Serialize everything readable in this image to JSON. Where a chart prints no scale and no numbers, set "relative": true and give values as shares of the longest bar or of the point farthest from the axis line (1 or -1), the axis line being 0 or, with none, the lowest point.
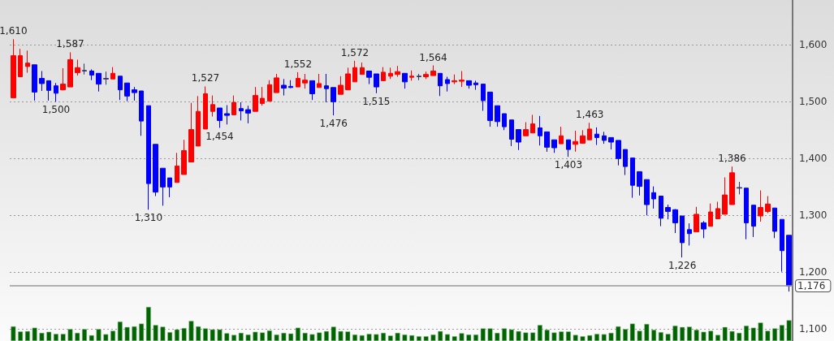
{
  "chart_data": [
    {
      "type": "candlestick",
      "categories": [
        null,
        null,
        null,
        null,
        null,
        null,
        null,
        null,
        null,
        null,
        null,
        null,
        null,
        null,
        null,
        null,
        null,
        null,
        null,
        null,
        null,
        null,
        null,
        null,
        null,
        null,
        null,
        null,
        null,
        null,
        null,
        null,
        null,
        null,
        null,
        null,
        null,
        null,
        null,
        null,
        null,
        null,
        null,
        null,
        null,
        null,
        null,
        null,
        null,
        null,
        null,
        null,
        null,
        null,
        null,
        null,
        null,
        null,
        null,
        null,
        null,
        null,
        null,
        null,
        null,
        null,
        null,
        null,
        null,
        null,
        null,
        null,
        null,
        null,
        null,
        null,
        null,
        null,
        null,
        null,
        null,
        null,
        null,
        null,
        null,
        null,
        null,
        null,
        null,
        null,
        null,
        null,
        null,
        null,
        null,
        null,
        null,
        null,
        null,
        null,
        null,
        null,
        null,
        null,
        null,
        null,
        null,
        null,
        null,
        null
      ],
      "ohlc": [
        [
          1507,
          1610,
          1507,
          1581
        ],
        [
          1544,
          1593,
          1544,
          1581
        ],
        [
          1562,
          1590,
          1551,
          1568
        ],
        [
          1565,
          1565,
          1502,
          1517
        ],
        [
          1541,
          1554,
          1519,
          1532
        ],
        [
          1537,
          1537,
          1502,
          1520
        ],
        [
          1528,
          1533,
          1500,
          1515
        ],
        [
          1521,
          1559,
          1520,
          1531
        ],
        [
          1526,
          1587,
          1526,
          1574
        ],
        [
          1551,
          1574,
          1546,
          1560
        ],
        [
          1554,
          1567,
          1548,
          1555
        ],
        [
          1554,
          1557,
          1538,
          1547
        ],
        [
          1550,
          1550,
          1518,
          1531
        ],
        [
          1540,
          1553,
          1530,
          1541
        ],
        [
          1540,
          1561,
          1540,
          1550
        ],
        [
          1545,
          1545,
          1503,
          1521
        ],
        [
          1533,
          1533,
          1501,
          1510
        ],
        [
          1521,
          1526,
          1502,
          1516
        ],
        [
          1519,
          1519,
          1440,
          1466
        ],
        [
          1493,
          1493,
          1310,
          1356
        ],
        [
          1425,
          1425,
          1334,
          1341
        ],
        [
          1383,
          1383,
          1317,
          1350
        ],
        [
          1366,
          1366,
          1332,
          1350
        ],
        [
          1358,
          1410,
          1358,
          1387
        ],
        [
          1372,
          1433,
          1372,
          1414
        ],
        [
          1394,
          1498,
          1394,
          1451
        ],
        [
          1422,
          1510,
          1422,
          1483
        ],
        [
          1452,
          1527,
          1452,
          1514
        ],
        [
          1483,
          1511,
          1474,
          1495
        ],
        [
          1489,
          1489,
          1454,
          1467
        ],
        [
          1479,
          1494,
          1460,
          1476
        ],
        [
          1477,
          1511,
          1477,
          1499
        ],
        [
          1488,
          1499,
          1467,
          1484
        ],
        [
          1486,
          1493,
          1462,
          1480
        ],
        [
          1483,
          1526,
          1483,
          1511
        ],
        [
          1497,
          1526,
          1493,
          1506
        ],
        [
          1501,
          1538,
          1501,
          1530
        ],
        [
          1516,
          1549,
          1516,
          1542
        ],
        [
          1529,
          1540,
          1511,
          1524
        ],
        [
          1527,
          1538,
          1524,
          1525
        ],
        [
          1526,
          1552,
          1526,
          1541
        ],
        [
          1533,
          1549,
          1523,
          1538
        ],
        [
          1537,
          1537,
          1503,
          1514
        ],
        [
          1525,
          1549,
          1525,
          1532
        ],
        [
          1528,
          1549,
          1499,
          1523
        ],
        [
          1525,
          1525,
          1476,
          1500
        ],
        [
          1513,
          1545,
          1513,
          1529
        ],
        [
          1521,
          1560,
          1521,
          1549
        ],
        [
          1535,
          1572,
          1535,
          1560
        ],
        [
          1548,
          1569,
          1548,
          1560
        ],
        [
          1554,
          1554,
          1531,
          1543
        ],
        [
          1549,
          1549,
          1515,
          1526
        ],
        [
          1537,
          1561,
          1537,
          1552
        ],
        [
          1545,
          1560,
          1540,
          1550
        ],
        [
          1548,
          1563,
          1544,
          1553
        ],
        [
          1550,
          1550,
          1523,
          1535
        ],
        [
          1543,
          1555,
          1537,
          1545
        ],
        [
          1544,
          1549,
          1538,
          1545
        ],
        [
          1544,
          1553,
          1540,
          1548
        ],
        [
          1546,
          1564,
          1546,
          1554
        ],
        [
          1550,
          1550,
          1510,
          1528
        ],
        [
          1539,
          1544,
          1518,
          1532
        ],
        [
          1535,
          1548,
          1531,
          1537
        ],
        [
          1536,
          1554,
          1526,
          1538
        ],
        [
          1537,
          1537,
          1523,
          1529
        ],
        [
          1533,
          1537,
          1521,
          1530
        ],
        [
          1531,
          1531,
          1484,
          1502
        ],
        [
          1517,
          1517,
          1456,
          1467
        ],
        [
          1493,
          1493,
          1456,
          1465
        ],
        [
          1479,
          1479,
          1450,
          1456
        ],
        [
          1468,
          1468,
          1422,
          1434
        ],
        [
          1451,
          1451,
          1415,
          1429
        ],
        [
          1440,
          1464,
          1440,
          1451
        ],
        [
          1445,
          1477,
          1445,
          1461
        ],
        [
          1454,
          1475,
          1423,
          1440
        ],
        [
          1447,
          1447,
          1412,
          1420
        ],
        [
          1433,
          1433,
          1410,
          1419
        ],
        [
          1426,
          1456,
          1426,
          1440
        ],
        [
          1433,
          1433,
          1403,
          1416
        ],
        [
          1425,
          1449,
          1412,
          1430
        ],
        [
          1427,
          1450,
          1427,
          1440
        ],
        [
          1433,
          1463,
          1433,
          1452
        ],
        [
          1443,
          1455,
          1424,
          1437
        ],
        [
          1440,
          1447,
          1426,
          1432
        ],
        [
          1437,
          1437,
          1416,
          1429
        ],
        [
          1432,
          1432,
          1388,
          1400
        ],
        [
          1416,
          1416,
          1371,
          1386
        ],
        [
          1401,
          1401,
          1331,
          1353
        ],
        [
          1377,
          1377,
          1335,
          1351
        ],
        [
          1363,
          1363,
          1300,
          1319
        ],
        [
          1340,
          1351,
          1312,
          1329
        ],
        [
          1334,
          1334,
          1281,
          1295
        ],
        [
          1314,
          1319,
          1293,
          1307
        ],
        [
          1310,
          1311,
          1269,
          1287
        ],
        [
          1299,
          1299,
          1226,
          1252
        ],
        [
          1275,
          1286,
          1247,
          1268
        ],
        [
          1271,
          1315,
          1271,
          1302
        ],
        [
          1287,
          1290,
          1260,
          1276
        ],
        [
          1281,
          1321,
          1281,
          1306
        ],
        [
          1294,
          1324,
          1294,
          1312
        ],
        [
          1302,
          1367,
          1302,
          1336
        ],
        [
          1319,
          1386,
          1319,
          1375
        ],
        [
          1348,
          1359,
          1337,
          1349
        ],
        [
          1348,
          1348,
          1258,
          1287
        ],
        [
          1318,
          1318,
          1262,
          1281
        ],
        [
          1299,
          1344,
          1289,
          1314
        ],
        [
          1307,
          1334,
          1304,
          1320
        ],
        [
          1313,
          1313,
          1260,
          1272
        ],
        [
          1293,
          1293,
          1201,
          1238
        ],
        [
          1265,
          1265,
          1166,
          1176
        ]
      ],
      "colors": [
        "#ff0000",
        "#ff0000",
        "#ff0000",
        "#0000ff",
        "#0000ff",
        "#0000ff",
        "#0000ff",
        "#ff0000",
        "#ff0000",
        "#ff0000",
        "#333366",
        "#0000ff",
        "#0000ff",
        "#333366",
        "#ff0000",
        "#0000ff",
        "#0000ff",
        "#0000ff",
        "#0000ff",
        "#0000ff",
        "#0000ff",
        "#0000ff",
        "#0000ff",
        "#ff0000",
        "#ff0000",
        "#ff0000",
        "#ff0000",
        "#ff0000",
        "#ff0000",
        "#0000ff",
        "#0000ff",
        "#ff0000",
        "#0000ff",
        "#0000ff",
        "#ff0000",
        "#ff0000",
        "#ff0000",
        "#ff0000",
        "#0000ff",
        "#0000ff",
        "#ff0000",
        "#ff0000",
        "#0000ff",
        "#ff0000",
        "#0000ff",
        "#0000ff",
        "#ff0000",
        "#ff0000",
        "#ff0000",
        "#ff0000",
        "#0000ff",
        "#0000ff",
        "#ff0000",
        "#ff0000",
        "#ff0000",
        "#0000ff",
        "#ff0000",
        "#333366",
        "#ff0000",
        "#ff0000",
        "#0000ff",
        "#0000ff",
        "#ff0000",
        "#ff0000",
        "#0000ff",
        "#0000ff",
        "#0000ff",
        "#0000ff",
        "#0000ff",
        "#0000ff",
        "#0000ff",
        "#0000ff",
        "#ff0000",
        "#ff0000",
        "#0000ff",
        "#0000ff",
        "#0000ff",
        "#ff0000",
        "#0000ff",
        "#ff0000",
        "#ff0000",
        "#ff0000",
        "#0000ff",
        "#0000ff",
        "#0000ff",
        "#0000ff",
        "#0000ff",
        "#0000ff",
        "#0000ff",
        "#0000ff",
        "#0000ff",
        "#0000ff",
        "#0000ff",
        "#0000ff",
        "#0000ff",
        "#0000ff",
        "#ff0000",
        "#0000ff",
        "#ff0000",
        "#ff0000",
        "#ff0000",
        "#ff0000",
        "#333366",
        "#0000ff",
        "#0000ff",
        "#ff0000",
        "#ff0000",
        "#0000ff",
        "#0000ff",
        "#0000ff"
      ],
      "ylim": [
        1079,
        1679
      ],
      "yticks": [
        {
          "value": 1100,
          "label": "1,100"
        },
        {
          "value": 1200,
          "label": "1,200"
        },
        {
          "value": 1300,
          "label": "1,300"
        },
        {
          "value": 1400,
          "label": "1,400"
        },
        {
          "value": 1500,
          "label": "1,500"
        },
        {
          "value": 1600,
          "label": "1,600"
        }
      ],
      "grid": "y",
      "tick_labels": "y",
      "ref_lines": [
        {
          "axis": "y",
          "value": 1176,
          "label": "1,176",
          "color": "#999999"
        }
      ],
      "annotations": [
        {
          "text": "1,610",
          "y": 1610
        },
        {
          "text": "1,587",
          "y": 1587
        },
        {
          "text": "1,500",
          "y": 1500
        },
        {
          "text": "1,310",
          "y": 1310
        },
        {
          "text": "1,527",
          "y": 1527
        },
        {
          "text": "1,454",
          "y": 1454
        },
        {
          "text": "1,552",
          "y": 1552
        },
        {
          "text": "1,476",
          "y": 1476
        },
        {
          "text": "1,572",
          "y": 1572
        },
        {
          "text": "1,515",
          "y": 1515
        },
        {
          "text": "1,564",
          "y": 1564
        },
        {
          "text": "1,463",
          "y": 1463
        },
        {
          "text": "1,403",
          "y": 1403
        },
        {
          "text": "1,226",
          "y": 1226
        },
        {
          "text": "1,386",
          "y": 1386
        }
      ]
    },
    {
      "type": "bar",
      "relative": true,
      "color": "#006400",
      "categories": [
        null,
        null,
        null,
        null,
        null,
        null,
        null,
        null,
        null,
        null,
        null,
        null,
        null,
        null,
        null,
        null,
        null,
        null,
        null,
        null,
        null,
        null,
        null,
        null,
        null,
        null,
        null,
        null,
        null,
        null,
        null,
        null,
        null,
        null,
        null,
        null,
        null,
        null,
        null,
        null,
        null,
        null,
        null,
        null,
        null,
        null,
        null,
        null,
        null,
        null,
        null,
        null,
        null,
        null,
        null,
        null,
        null,
        null,
        null,
        null,
        null,
        null,
        null,
        null,
        null,
        null,
        null,
        null,
        null,
        null,
        null,
        null,
        null,
        null,
        null,
        null,
        null,
        null,
        null,
        null,
        null,
        null,
        null,
        null,
        null,
        null,
        null,
        null,
        null,
        null,
        null,
        null,
        null,
        null,
        null,
        null,
        null,
        null,
        null,
        null,
        null,
        null,
        null,
        null,
        null,
        null,
        null,
        null,
        null,
        null
      ],
      "values": [
        0.43,
        0.28,
        0.29,
        0.39,
        0.24,
        0.27,
        0.21,
        0.21,
        0.35,
        0.24,
        0.35,
        0.17,
        0.35,
        0.2,
        0.3,
        0.57,
        0.41,
        0.43,
        0.51,
        1,
        0.47,
        0.42,
        0.26,
        0.34,
        0.38,
        0.59,
        0.43,
        0.37,
        0.34,
        0.34,
        0.23,
        0.18,
        0.24,
        0.19,
        0.27,
        0.25,
        0.31,
        0.19,
        0.24,
        0.22,
        0.39,
        0.24,
        0.2,
        0.25,
        0.29,
        0.42,
        0.29,
        0.28,
        0.19,
        0.17,
        0.21,
        0.2,
        0.24,
        0.16,
        0.24,
        0.19,
        0.17,
        0.14,
        0.14,
        0.19,
        0.29,
        0.2,
        0.14,
        0.23,
        0.19,
        0.19,
        0.37,
        0.37,
        0.24,
        0.37,
        0.34,
        0.29,
        0.25,
        0.25,
        0.47,
        0.33,
        0.25,
        0.28,
        0.28,
        0.18,
        0.14,
        0.17,
        0.21,
        0.2,
        0.24,
        0.43,
        0.35,
        0.51,
        0.3,
        0.5,
        0.33,
        0.26,
        0.21,
        0.45,
        0.41,
        0.42,
        0.33,
        0.27,
        0.3,
        0.18,
        0.41,
        0.29,
        0.24,
        0.45,
        0.39,
        0.54,
        0.3,
        0.37,
        0.47,
        0.61
      ],
      "tick_labels": false
    }
  ]
}
